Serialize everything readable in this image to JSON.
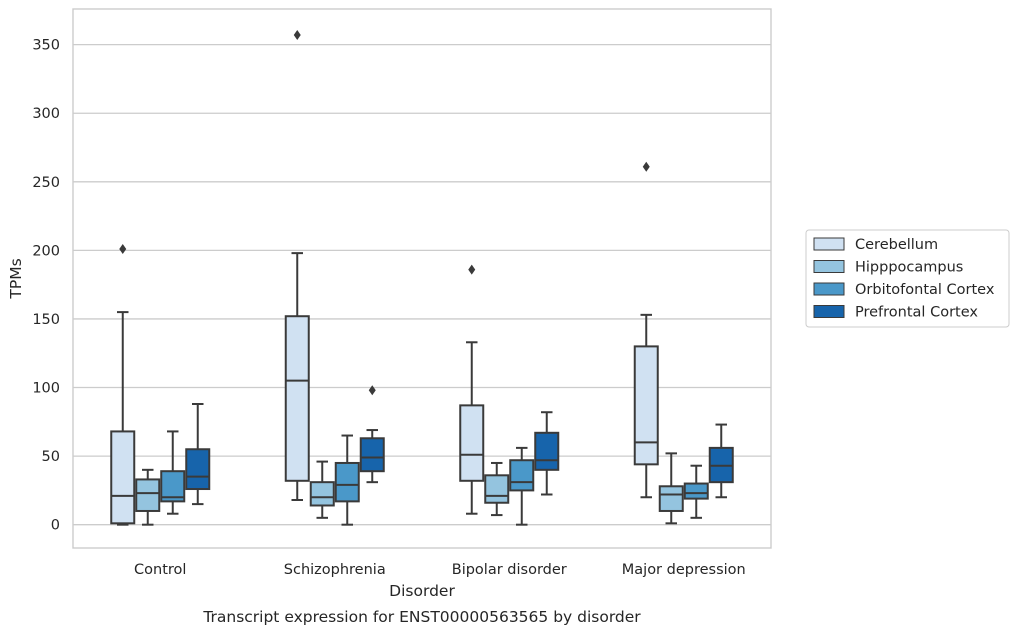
{
  "chart_data": {
    "type": "boxplot",
    "title": "",
    "caption": "Transcript expression for ENST00000563565 by disorder",
    "xlabel": "Disorder",
    "ylabel": "TPMs",
    "ylim": [
      -17,
      376
    ],
    "yticks": [
      0,
      50,
      100,
      150,
      200,
      250,
      300,
      350
    ],
    "grid": "horizontal",
    "legend_position": "outside-right",
    "categories": [
      "Control",
      "Schizophrenia",
      "Bipolar disorder",
      "Major depression"
    ],
    "series": [
      {
        "name": "Cerebellum",
        "color": "#d0e1f2",
        "boxes": [
          {
            "whislo": 0,
            "q1": 1,
            "med": 21,
            "q3": 68,
            "whishi": 155,
            "fliers": [
              201
            ]
          },
          {
            "whislo": 18,
            "q1": 32,
            "med": 105,
            "q3": 152,
            "whishi": 198,
            "fliers": [
              357
            ]
          },
          {
            "whislo": 8,
            "q1": 32,
            "med": 51,
            "q3": 87,
            "whishi": 133,
            "fliers": [
              186
            ]
          },
          {
            "whislo": 20,
            "q1": 44,
            "med": 60,
            "q3": 130,
            "whishi": 153,
            "fliers": [
              261
            ]
          }
        ]
      },
      {
        "name": "Hipppocampus",
        "color": "#94c4df",
        "boxes": [
          {
            "whislo": 0,
            "q1": 10,
            "med": 23,
            "q3": 33,
            "whishi": 40,
            "fliers": []
          },
          {
            "whislo": 5,
            "q1": 14,
            "med": 20,
            "q3": 31,
            "whishi": 46,
            "fliers": []
          },
          {
            "whislo": 7,
            "q1": 16,
            "med": 21,
            "q3": 36,
            "whishi": 45,
            "fliers": []
          },
          {
            "whislo": 1,
            "q1": 10,
            "med": 22,
            "q3": 28,
            "whishi": 52,
            "fliers": []
          }
        ]
      },
      {
        "name": "Orbitofontal Cortex",
        "color": "#4a98c9",
        "boxes": [
          {
            "whislo": 8,
            "q1": 17,
            "med": 20,
            "q3": 39,
            "whishi": 68,
            "fliers": []
          },
          {
            "whislo": 0,
            "q1": 17,
            "med": 29,
            "q3": 45,
            "whishi": 65,
            "fliers": []
          },
          {
            "whislo": 0,
            "q1": 25,
            "med": 31,
            "q3": 47,
            "whishi": 56,
            "fliers": []
          },
          {
            "whislo": 5,
            "q1": 19,
            "med": 23,
            "q3": 30,
            "whishi": 43,
            "fliers": []
          }
        ]
      },
      {
        "name": "Prefrontal Cortex",
        "color": "#1764ab",
        "boxes": [
          {
            "whislo": 15,
            "q1": 26,
            "med": 35,
            "q3": 55,
            "whishi": 88,
            "fliers": []
          },
          {
            "whislo": 31,
            "q1": 39,
            "med": 49,
            "q3": 63,
            "whishi": 69,
            "fliers": [
              98
            ]
          },
          {
            "whislo": 22,
            "q1": 40,
            "med": 47,
            "q3": 67,
            "whishi": 82,
            "fliers": []
          },
          {
            "whislo": 20,
            "q1": 31,
            "med": 43,
            "q3": 56,
            "whishi": 73,
            "fliers": []
          }
        ]
      }
    ]
  }
}
